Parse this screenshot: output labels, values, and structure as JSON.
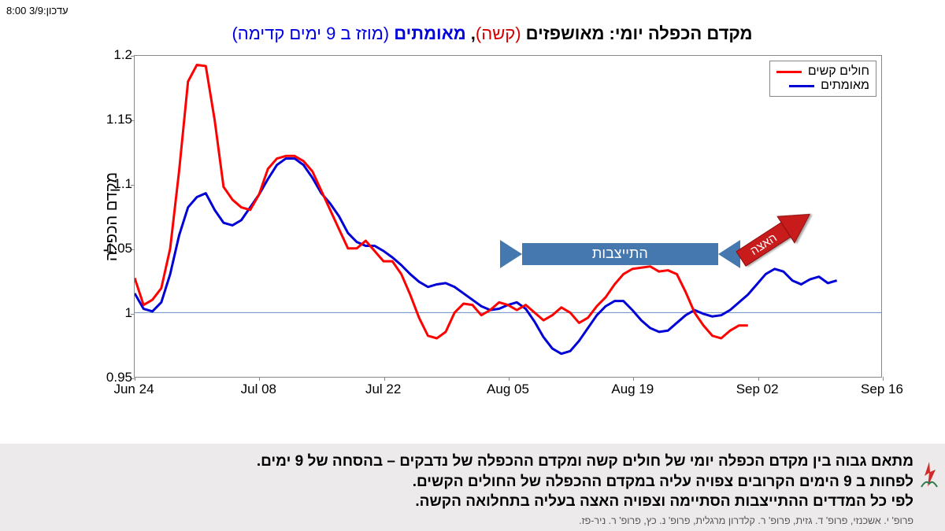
{
  "update_label": "עדכון:3/9 8:00",
  "title": {
    "prefix": "מקדם הכפלה יומי: ",
    "hosp_bold": "מאושפזים ",
    "hosp_note": "(קשה)",
    "comma": ", ",
    "verified_bold": "מאומתים ",
    "verified_note": "(מוזז ב 9 ימים קדימה)"
  },
  "y_label": "מקדם הכפלה",
  "legend": {
    "series1": "חולים קשים",
    "series2": "מאומתים"
  },
  "colors": {
    "severe": "#ff0000",
    "verified": "#0000d6",
    "axis": "#888888",
    "ref": "#6a8cc4",
    "stable_arrow": "#4678b0",
    "accel_arrow": "#c81e1e",
    "footer_bg": "#eceaea"
  },
  "annot": {
    "stable": "התייצבות",
    "accel": "האצה"
  },
  "axes": {
    "ymin": 0.95,
    "ymax": 1.2,
    "yticks": [
      0.95,
      1,
      1.05,
      1.1,
      1.15,
      1.2
    ],
    "xmin": 0,
    "xmax": 84,
    "xticks": [
      0,
      14,
      28,
      42,
      56,
      70,
      84
    ],
    "xticklabels": [
      "Jun 24",
      "Jul 08",
      "Jul 22",
      "Aug 05",
      "Aug 19",
      "Sep 02",
      "Sep 16"
    ]
  },
  "series": {
    "severe": [
      [
        0,
        1.027
      ],
      [
        1,
        1.006
      ],
      [
        2,
        1.01
      ],
      [
        3,
        1.019
      ],
      [
        4,
        1.05
      ],
      [
        5,
        1.11
      ],
      [
        6,
        1.18
      ],
      [
        7,
        1.193
      ],
      [
        8,
        1.192
      ],
      [
        9,
        1.15
      ],
      [
        10,
        1.098
      ],
      [
        11,
        1.088
      ],
      [
        12,
        1.082
      ],
      [
        13,
        1.08
      ],
      [
        14,
        1.092
      ],
      [
        15,
        1.112
      ],
      [
        16,
        1.12
      ],
      [
        17,
        1.122
      ],
      [
        18,
        1.122
      ],
      [
        19,
        1.118
      ],
      [
        20,
        1.11
      ],
      [
        21,
        1.095
      ],
      [
        22,
        1.08
      ],
      [
        23,
        1.065
      ],
      [
        24,
        1.05
      ],
      [
        25,
        1.05
      ],
      [
        26,
        1.056
      ],
      [
        27,
        1.048
      ],
      [
        28,
        1.04
      ],
      [
        29,
        1.04
      ],
      [
        30,
        1.03
      ],
      [
        31,
        1.014
      ],
      [
        32,
        0.996
      ],
      [
        33,
        0.982
      ],
      [
        34,
        0.98
      ],
      [
        35,
        0.985
      ],
      [
        36,
        1.0
      ],
      [
        37,
        1.007
      ],
      [
        38,
        1.006
      ],
      [
        39,
        0.998
      ],
      [
        40,
        1.002
      ],
      [
        41,
        1.008
      ],
      [
        42,
        1.006
      ],
      [
        43,
        1.002
      ],
      [
        44,
        1.006
      ],
      [
        45,
        1.0
      ],
      [
        46,
        0.994
      ],
      [
        47,
        0.998
      ],
      [
        48,
        1.004
      ],
      [
        49,
        1.0
      ],
      [
        50,
        0.992
      ],
      [
        51,
        0.996
      ],
      [
        52,
        1.005
      ],
      [
        53,
        1.012
      ],
      [
        54,
        1.022
      ],
      [
        55,
        1.03
      ],
      [
        56,
        1.034
      ],
      [
        57,
        1.035
      ],
      [
        58,
        1.036
      ],
      [
        59,
        1.032
      ],
      [
        60,
        1.033
      ],
      [
        61,
        1.03
      ],
      [
        62,
        1.016
      ],
      [
        63,
        1.0
      ],
      [
        64,
        0.99
      ],
      [
        65,
        0.982
      ],
      [
        66,
        0.98
      ],
      [
        67,
        0.986
      ],
      [
        68,
        0.99
      ],
      [
        69,
        0.99
      ]
    ],
    "verified": [
      [
        0,
        1.015
      ],
      [
        1,
        1.003
      ],
      [
        2,
        1.001
      ],
      [
        3,
        1.008
      ],
      [
        4,
        1.03
      ],
      [
        5,
        1.06
      ],
      [
        6,
        1.082
      ],
      [
        7,
        1.09
      ],
      [
        8,
        1.093
      ],
      [
        9,
        1.08
      ],
      [
        10,
        1.07
      ],
      [
        11,
        1.068
      ],
      [
        12,
        1.072
      ],
      [
        13,
        1.082
      ],
      [
        14,
        1.092
      ],
      [
        15,
        1.104
      ],
      [
        16,
        1.115
      ],
      [
        17,
        1.12
      ],
      [
        18,
        1.12
      ],
      [
        19,
        1.115
      ],
      [
        20,
        1.105
      ],
      [
        21,
        1.093
      ],
      [
        22,
        1.085
      ],
      [
        23,
        1.075
      ],
      [
        24,
        1.062
      ],
      [
        25,
        1.055
      ],
      [
        26,
        1.052
      ],
      [
        27,
        1.052
      ],
      [
        28,
        1.048
      ],
      [
        29,
        1.043
      ],
      [
        30,
        1.037
      ],
      [
        31,
        1.03
      ],
      [
        32,
        1.024
      ],
      [
        33,
        1.02
      ],
      [
        34,
        1.022
      ],
      [
        35,
        1.023
      ],
      [
        36,
        1.02
      ],
      [
        37,
        1.015
      ],
      [
        38,
        1.01
      ],
      [
        39,
        1.005
      ],
      [
        40,
        1.002
      ],
      [
        41,
        1.003
      ],
      [
        42,
        1.006
      ],
      [
        43,
        1.008
      ],
      [
        44,
        1.003
      ],
      [
        45,
        0.993
      ],
      [
        46,
        0.981
      ],
      [
        47,
        0.972
      ],
      [
        48,
        0.968
      ],
      [
        49,
        0.97
      ],
      [
        50,
        0.978
      ],
      [
        51,
        0.988
      ],
      [
        52,
        0.998
      ],
      [
        53,
        1.005
      ],
      [
        54,
        1.009
      ],
      [
        55,
        1.009
      ],
      [
        56,
        1.002
      ],
      [
        57,
        0.994
      ],
      [
        58,
        0.988
      ],
      [
        59,
        0.985
      ],
      [
        60,
        0.986
      ],
      [
        61,
        0.992
      ],
      [
        62,
        0.998
      ],
      [
        63,
        1.002
      ],
      [
        64,
        0.999
      ],
      [
        65,
        0.997
      ],
      [
        66,
        0.998
      ],
      [
        67,
        1.002
      ],
      [
        68,
        1.008
      ],
      [
        69,
        1.014
      ],
      [
        70,
        1.022
      ],
      [
        71,
        1.03
      ],
      [
        72,
        1.034
      ],
      [
        73,
        1.032
      ],
      [
        74,
        1.025
      ],
      [
        75,
        1.022
      ],
      [
        76,
        1.026
      ],
      [
        77,
        1.028
      ],
      [
        78,
        1.023
      ],
      [
        79,
        1.025
      ]
    ]
  },
  "footer": {
    "l1": "מתאם גבוה בין מקדם הכפלה יומי של חולים קשה ומקדם ההכפלה של נדבקים – בהסחה של 9 ימים.",
    "l2": "לפחות ב 9 הימים הקרובים צפויה עליה במקדם ההכפלה של החולים הקשים.",
    "l3": "לפי כל המדדים ההתייצבות הסתיימה וצפויה האצה בעליה בתחלואה הקשה.",
    "credits": "פרופ' י. אשכנזי, פרופ' ד. גזית, פרופ' ר. קלדרון מרגלית, פרופ' נ. כץ, פרופ' ר. ניר-פז."
  }
}
